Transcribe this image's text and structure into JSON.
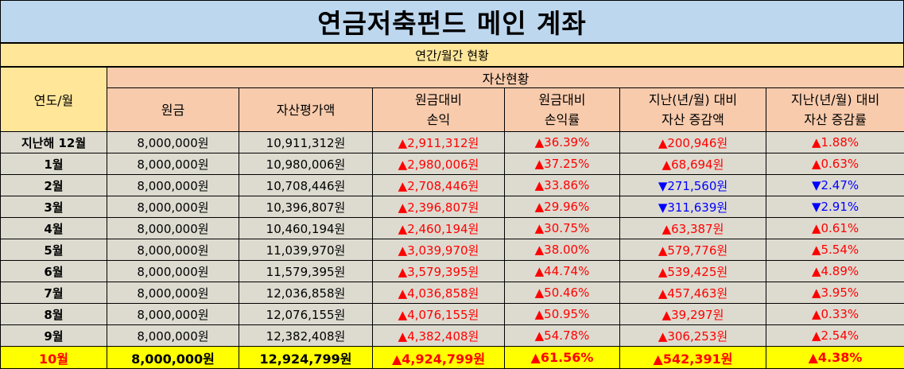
{
  "title": "연금저축펀드 메인 계좌",
  "subtitle": "연간/월간 현황",
  "header": {
    "year_month": "연도/월",
    "asset_status": "자산현황",
    "columns": [
      {
        "line1": "원금",
        "line2": ""
      },
      {
        "line1": "자산평가액",
        "line2": ""
      },
      {
        "line1": "원금대비",
        "line2": "손익"
      },
      {
        "line1": "원금대비",
        "line2": "손익률"
      },
      {
        "line1": "지난(년/월) 대비",
        "line2": "자산 증감액"
      },
      {
        "line1": "지난(년/월) 대비",
        "line2": "자산 증감률"
      }
    ]
  },
  "rows": [
    {
      "label": "지난해 12월",
      "principal": "8,000,000원",
      "value": "10,911,312원",
      "pl": "▲2,911,312원",
      "pl_rate": "▲36.39%",
      "chg": "▲200,946원",
      "chg_rate": "▲1.88%",
      "chg_dir": "up"
    },
    {
      "label": "1월",
      "principal": "8,000,000원",
      "value": "10,980,006원",
      "pl": "▲2,980,006원",
      "pl_rate": "▲37.25%",
      "chg": "▲68,694원",
      "chg_rate": "▲0.63%",
      "chg_dir": "up"
    },
    {
      "label": "2월",
      "principal": "8,000,000원",
      "value": "10,708,446원",
      "pl": "▲2,708,446원",
      "pl_rate": "▲33.86%",
      "chg": "▼271,560원",
      "chg_rate": "▼2.47%",
      "chg_dir": "down"
    },
    {
      "label": "3월",
      "principal": "8,000,000원",
      "value": "10,396,807원",
      "pl": "▲2,396,807원",
      "pl_rate": "▲29.96%",
      "chg": "▼311,639원",
      "chg_rate": "▼2.91%",
      "chg_dir": "down"
    },
    {
      "label": "4월",
      "principal": "8,000,000원",
      "value": "10,460,194원",
      "pl": "▲2,460,194원",
      "pl_rate": "▲30.75%",
      "chg": "▲63,387원",
      "chg_rate": "▲0.61%",
      "chg_dir": "up"
    },
    {
      "label": "5월",
      "principal": "8,000,000원",
      "value": "11,039,970원",
      "pl": "▲3,039,970원",
      "pl_rate": "▲38.00%",
      "chg": "▲579,776원",
      "chg_rate": "▲5.54%",
      "chg_dir": "up"
    },
    {
      "label": "6월",
      "principal": "8,000,000원",
      "value": "11,579,395원",
      "pl": "▲3,579,395원",
      "pl_rate": "▲44.74%",
      "chg": "▲539,425원",
      "chg_rate": "▲4.89%",
      "chg_dir": "up"
    },
    {
      "label": "7월",
      "principal": "8,000,000원",
      "value": "12,036,858원",
      "pl": "▲4,036,858원",
      "pl_rate": "▲50.46%",
      "chg": "▲457,463원",
      "chg_rate": "▲3.95%",
      "chg_dir": "up"
    },
    {
      "label": "8월",
      "principal": "8,000,000원",
      "value": "12,076,155원",
      "pl": "▲4,076,155원",
      "pl_rate": "▲50.95%",
      "chg": "▲39,297원",
      "chg_rate": "▲0.33%",
      "chg_dir": "up"
    },
    {
      "label": "9월",
      "principal": "8,000,000원",
      "value": "12,382,408원",
      "pl": "▲4,382,408원",
      "pl_rate": "▲54.78%",
      "chg": "▲306,253원",
      "chg_rate": "▲2.54%",
      "chg_dir": "up"
    }
  ],
  "current": {
    "label": "10월",
    "principal": "8,000,000원",
    "value": "12,924,799원",
    "pl": "▲4,924,799원",
    "pl_rate": "▲61.56%",
    "chg": "▲542,391원",
    "chg_rate": "▲4.38%",
    "chg_dir": "up"
  },
  "colors": {
    "up": "#ff0000",
    "down": "#0000ff",
    "title_bg": "#bdd7ee",
    "header_bg": "#f8cbad",
    "subtitle_bg": "#ffe699",
    "row_bg": "#dddbd0",
    "current_bg": "#ffff00"
  }
}
